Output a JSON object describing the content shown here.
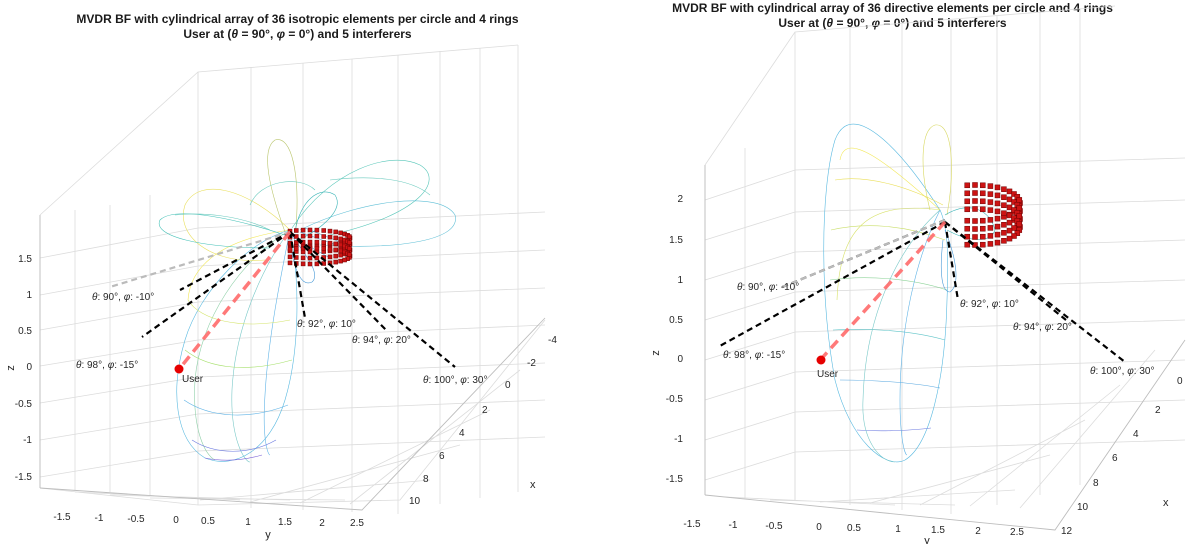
{
  "chart_data": [
    {
      "type": "3d-beampattern",
      "title": "MVDR BF with cylindrical array of 36 isotropic elements per circle and 4 rings",
      "subtitle_parts": [
        "User at (",
        "θ",
        " = 90°, ",
        "φ",
        " = 0°) and 5 interferers"
      ],
      "xlabel": "x",
      "ylabel": "y",
      "zlabel": "z",
      "x_ticks": [
        "-4",
        "-2",
        "0",
        "2",
        "4",
        "6",
        "8",
        "10"
      ],
      "y_ticks": [
        "-1.5",
        "-1",
        "-0.5",
        "0",
        "0.5",
        "1",
        "1.5",
        "2",
        "2.5"
      ],
      "z_ticks": [
        "1.5",
        "1",
        "0.5",
        "0",
        "-0.5",
        "-1",
        "-1.5"
      ],
      "user": {
        "theta": 90,
        "phi": 0,
        "label": "User"
      },
      "interferers": [
        {
          "theta": 90,
          "phi": -10,
          "label": "θ: 90°, φ: -10°"
        },
        {
          "theta": 98,
          "phi": -15,
          "label": "θ: 98°, φ: -15°"
        },
        {
          "theta": 92,
          "phi": 10,
          "label": "θ: 92°, φ: 10°"
        },
        {
          "theta": 94,
          "phi": 20,
          "label": "θ: 94°, φ: 20°"
        },
        {
          "theta": 100,
          "phi": 30,
          "label": "θ: 100°, φ: 30°"
        }
      ],
      "array": {
        "elements_per_circle": 36,
        "rings": 4,
        "element_type": "isotropic"
      },
      "grid": true
    },
    {
      "type": "3d-beampattern",
      "title": "MVDR BF with cylindrical array of 36 directive elements per circle and 4 rings",
      "subtitle_parts": [
        "User at (",
        "θ",
        " = 90°, ",
        "φ",
        " = 0°) and 5 interferers"
      ],
      "xlabel": "x",
      "ylabel": "y",
      "zlabel": "z",
      "x_ticks": [
        "0",
        "2",
        "4",
        "6",
        "8",
        "10",
        "12"
      ],
      "y_ticks": [
        "-1.5",
        "-1",
        "-0.5",
        "0",
        "0.5",
        "1",
        "1.5",
        "2",
        "2.5"
      ],
      "z_ticks": [
        "2",
        "1.5",
        "1",
        "0.5",
        "0",
        "-0.5",
        "-1",
        "-1.5"
      ],
      "user": {
        "theta": 90,
        "phi": 0,
        "label": "User"
      },
      "interferers": [
        {
          "theta": 90,
          "phi": -10,
          "label": "θ: 90°, φ: -10°"
        },
        {
          "theta": 98,
          "phi": -15,
          "label": "θ: 98°, φ: -15°"
        },
        {
          "theta": 92,
          "phi": 10,
          "label": "θ: 92°, φ: 10°"
        },
        {
          "theta": 94,
          "phi": 20,
          "label": "θ: 94°, φ: 20°"
        },
        {
          "theta": 100,
          "phi": 30,
          "label": "θ: 100°, φ: 30°"
        }
      ],
      "array": {
        "elements_per_circle": 36,
        "rings": 4,
        "element_type": "directive"
      },
      "grid": true
    }
  ],
  "colors": {
    "user_marker": "#e60000",
    "user_line": "#ff6a6a",
    "array_element": "#cc1414",
    "interferer_line": "#000000",
    "grid": "#dcdcdc",
    "colormap": [
      "#440154",
      "#5b6ee1",
      "#2fb5d6",
      "#4fd6b0",
      "#a6e06b",
      "#f2e85a"
    ]
  }
}
